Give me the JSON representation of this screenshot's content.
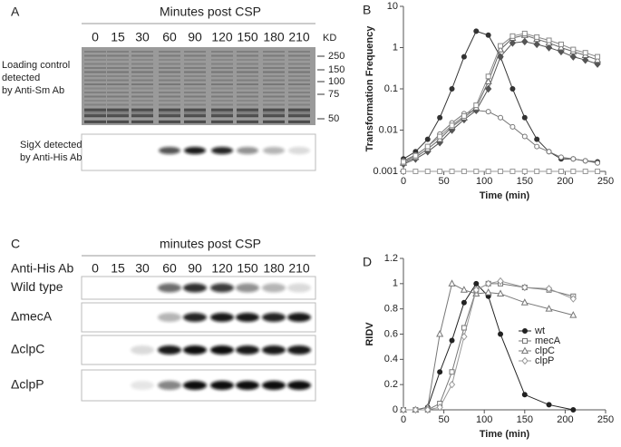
{
  "panel_a": {
    "letter": "A",
    "title": "Minutes post CSP",
    "lanes": [
      "0",
      "15",
      "30",
      "60",
      "90",
      "120",
      "150",
      "180",
      "210"
    ],
    "kd_label": "KD",
    "size_markers": [
      "250",
      "150",
      "100",
      "75",
      "50"
    ],
    "loading_label": [
      "Loading control",
      "detected",
      "by Anti-Sm Ab"
    ],
    "sigx_label": [
      "SigX detected",
      "by Anti-His Ab"
    ]
  },
  "panel_c": {
    "letter": "C",
    "title": "minutes post CSP",
    "antibody": "Anti-His Ab",
    "lanes": [
      "0",
      "15",
      "30",
      "60",
      "90",
      "120",
      "150",
      "180",
      "210"
    ],
    "rows": [
      "Wild type",
      "ΔmecA",
      "ΔclpC",
      "ΔclpP"
    ]
  },
  "chart_data": [
    {
      "type": "line",
      "panel": "B",
      "x_label": "Time (min)",
      "y_label": "Transformation Frequency",
      "log_scale": true,
      "xlim": [
        0,
        250
      ],
      "xticks": [
        0,
        50,
        100,
        150,
        200,
        250
      ],
      "ylim": [
        0.001,
        10
      ],
      "yticks": [
        0.001,
        0.01,
        0.1,
        1,
        10
      ],
      "x": [
        0,
        15,
        30,
        45,
        60,
        75,
        90,
        105,
        120,
        135,
        150,
        165,
        180,
        195,
        210,
        225,
        240
      ],
      "series": [
        {
          "color": "#333333",
          "marker": "circle-filled",
          "values": [
            0.002,
            0.003,
            0.006,
            0.02,
            0.1,
            0.6,
            2.5,
            2.0,
            0.6,
            0.1,
            0.02,
            0.006,
            0.003,
            0.002,
            0.002,
            0.0018,
            0.0017
          ]
        },
        {
          "color": "#777777",
          "marker": "circle-open",
          "values": [
            0.0018,
            0.0025,
            0.004,
            0.008,
            0.015,
            0.025,
            0.03,
            0.028,
            0.02,
            0.012,
            0.007,
            0.004,
            0.003,
            0.0022,
            0.002,
            0.0018,
            0.0016
          ]
        },
        {
          "color": "#555555",
          "marker": "diamond-filled",
          "values": [
            0.0015,
            0.002,
            0.003,
            0.005,
            0.01,
            0.018,
            0.03,
            0.1,
            0.6,
            1.3,
            1.4,
            1.2,
            1.0,
            0.8,
            0.6,
            0.5,
            0.4
          ]
        },
        {
          "color": "#666666",
          "marker": "triangle-open",
          "values": [
            0.0016,
            0.0022,
            0.0035,
            0.006,
            0.012,
            0.02,
            0.035,
            0.15,
            0.9,
            1.7,
            2.0,
            1.6,
            1.3,
            1.0,
            0.8,
            0.65,
            0.5
          ]
        },
        {
          "color": "#888888",
          "marker": "square-open",
          "values": [
            0.0017,
            0.0024,
            0.004,
            0.007,
            0.013,
            0.022,
            0.04,
            0.2,
            1.1,
            1.9,
            2.2,
            1.8,
            1.5,
            1.2,
            0.9,
            0.75,
            0.6
          ]
        },
        {
          "color": "#999999",
          "marker": "square-open",
          "values": [
            0.001,
            0.001,
            0.001,
            0.001,
            0.001,
            0.001,
            0.001,
            0.001,
            0.001,
            0.001,
            0.001,
            0.001,
            0.001,
            0.001,
            0.001,
            0.001,
            0.001
          ]
        }
      ]
    },
    {
      "type": "line",
      "panel": "D",
      "x_label": "Time (min)",
      "y_label": "RIDV",
      "log_scale": false,
      "xlim": [
        0,
        250
      ],
      "xticks": [
        0,
        50,
        100,
        150,
        200,
        250
      ],
      "ylim": [
        0,
        1.2
      ],
      "yticks": [
        0,
        0.2,
        0.4,
        0.6,
        0.8,
        1,
        1.2
      ],
      "x": [
        0,
        15,
        30,
        45,
        60,
        75,
        90,
        105,
        120,
        150,
        180,
        210
      ],
      "series": [
        {
          "name": "wt",
          "color": "#222222",
          "marker": "circle-filled",
          "values": [
            0,
            0,
            0.02,
            0.3,
            0.55,
            0.85,
            1.0,
            0.9,
            0.6,
            0.12,
            0.04,
            0
          ]
        },
        {
          "name": "mecA",
          "color": "#777777",
          "marker": "square-open",
          "values": [
            0,
            0,
            0,
            0.05,
            0.3,
            0.65,
            0.95,
            1.0,
            1.0,
            0.97,
            0.95,
            0.9
          ]
        },
        {
          "name": "clpC",
          "color": "#777777",
          "marker": "triangle-open",
          "values": [
            0,
            0,
            0.02,
            0.6,
            1.0,
            0.95,
            0.92,
            0.93,
            0.92,
            0.85,
            0.8,
            0.75
          ]
        },
        {
          "name": "clpP",
          "color": "#999999",
          "marker": "diamond-open",
          "values": [
            0,
            0,
            0,
            0.02,
            0.2,
            0.58,
            0.95,
            1.0,
            1.02,
            0.97,
            0.96,
            0.88
          ]
        }
      ]
    }
  ]
}
